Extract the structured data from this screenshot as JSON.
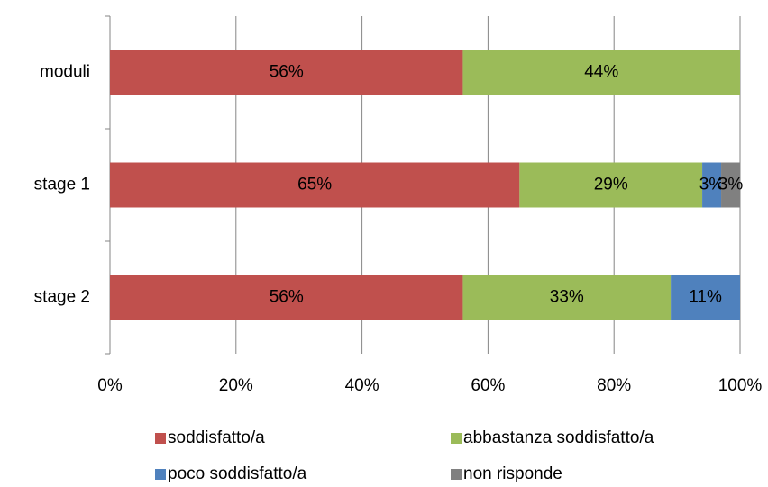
{
  "chart_data": {
    "type": "stacked_barh",
    "categories": [
      "moduli",
      "stage 1",
      "stage 2"
    ],
    "series": [
      {
        "name": "soddisfatto/a",
        "color": "#c0504d",
        "values": [
          56,
          65,
          56
        ],
        "value_labels": [
          "56%",
          "65%",
          "56%"
        ]
      },
      {
        "name": "abbastanza soddisfatto/a",
        "color": "#9bbb59",
        "values": [
          44,
          29,
          33
        ],
        "value_labels": [
          "44%",
          "29%",
          "33%"
        ]
      },
      {
        "name": "poco soddisfatto/a",
        "color": "#4f81bd",
        "values": [
          0,
          3,
          11
        ],
        "value_labels": [
          null,
          "3%",
          "11%"
        ]
      },
      {
        "name": "non risponde",
        "color": "#808080",
        "values": [
          0,
          3,
          0
        ],
        "value_labels": [
          null,
          "3%",
          null
        ]
      }
    ],
    "xlim": [
      0,
      100
    ],
    "xticks": [
      {
        "value": 0,
        "label": "0%"
      },
      {
        "value": 20,
        "label": "20%"
      },
      {
        "value": 40,
        "label": "40%"
      },
      {
        "value": 60,
        "label": "60%"
      },
      {
        "value": 80,
        "label": "80%"
      },
      {
        "value": 100,
        "label": "100%"
      }
    ],
    "grid": true,
    "legend": "bottom"
  }
}
